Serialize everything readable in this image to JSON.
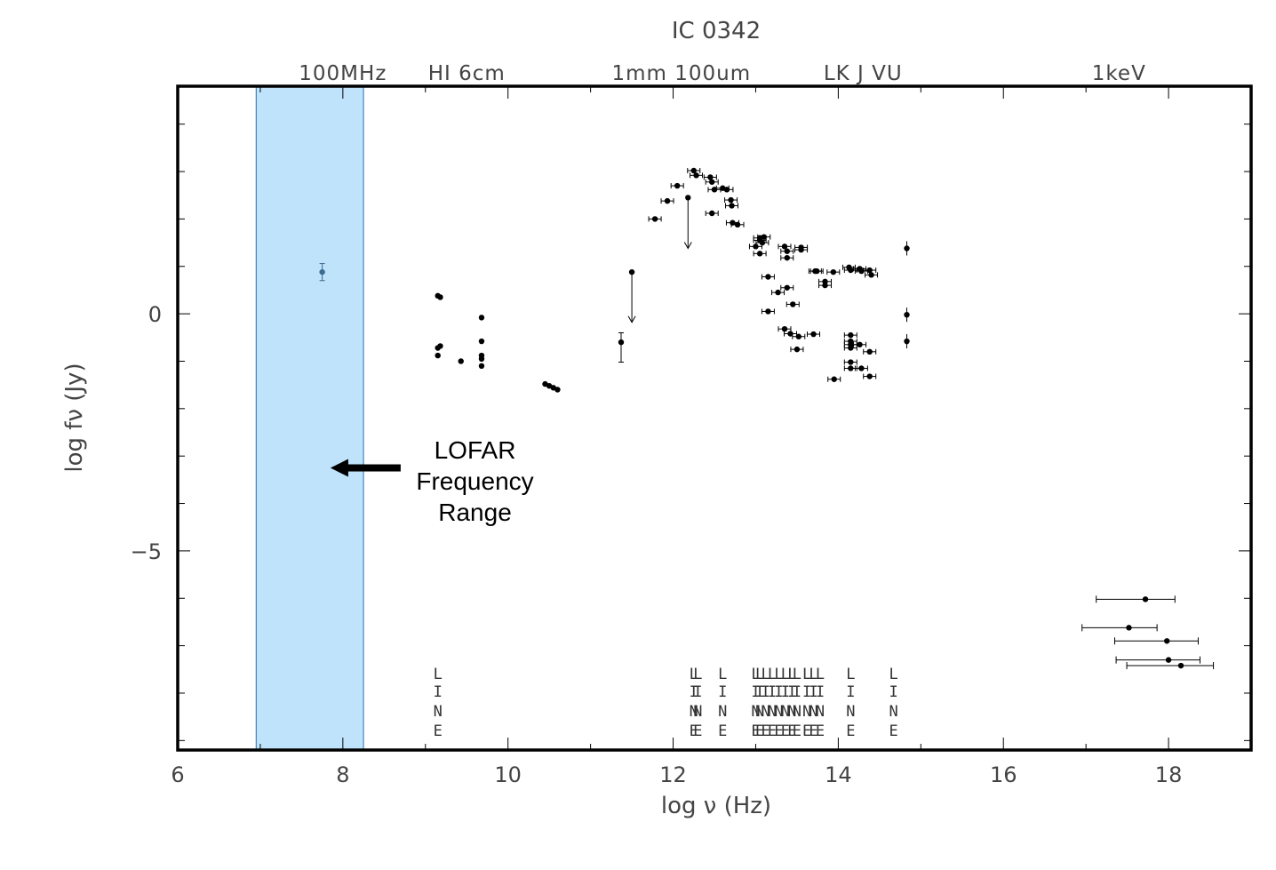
{
  "chart_data": {
    "type": "scatter",
    "title": "IC 0342",
    "xlabel": "log ν (Hz)",
    "ylabel": "log fν (Jy)",
    "xlim": [
      6,
      19
    ],
    "ylim": [
      -9.2,
      4.8
    ],
    "xticks": [
      6,
      8,
      10,
      12,
      14,
      16,
      18
    ],
    "yticks": [
      0,
      -5
    ],
    "top_labels": [
      {
        "text": "100MHz",
        "x": 8.0
      },
      {
        "text": "HI 6cm",
        "x": 9.5
      },
      {
        "text": "1mm 100um",
        "x": 12.1
      },
      {
        "text": "LK J VU",
        "x": 14.3
      },
      {
        "text": "1keV",
        "x": 17.4
      }
    ],
    "highlight_band": {
      "x": [
        6.95,
        8.25
      ],
      "color": "#bfe3fb",
      "edge": "#2a6fa8"
    },
    "annotation": {
      "lines": [
        "LOFAR",
        "Frequency",
        "Range"
      ],
      "arrow_tip": [
        7.85,
        -3.25
      ],
      "arrow_tail": [
        8.7,
        -3.25
      ]
    },
    "lofar_point": {
      "x": 7.75,
      "y": 0.88,
      "err": 0.18,
      "color": "#3d6b8f"
    },
    "series": [
      {
        "points": [
          [
            9.15,
            0.38
          ],
          [
            9.18,
            0.35
          ],
          [
            9.15,
            -0.72
          ],
          [
            9.18,
            -0.68
          ],
          [
            9.15,
            -0.88
          ],
          [
            9.43,
            -1.0
          ],
          [
            9.68,
            -0.08
          ],
          [
            9.68,
            -0.58
          ],
          [
            9.68,
            -0.88
          ],
          [
            9.68,
            -0.95
          ],
          [
            9.68,
            -1.1
          ],
          [
            10.45,
            -1.48
          ],
          [
            10.5,
            -1.52
          ],
          [
            10.55,
            -1.56
          ],
          [
            10.6,
            -1.6
          ],
          [
            11.37,
            -0.6
          ],
          [
            11.78,
            2.0
          ],
          [
            11.93,
            2.38
          ],
          [
            12.05,
            2.7
          ],
          [
            12.25,
            3.02
          ],
          [
            12.28,
            2.92
          ],
          [
            12.45,
            2.88
          ],
          [
            12.47,
            2.78
          ],
          [
            12.5,
            2.62
          ],
          [
            12.6,
            2.65
          ],
          [
            12.65,
            2.62
          ],
          [
            12.7,
            2.4
          ],
          [
            12.71,
            2.28
          ],
          [
            12.72,
            1.92
          ],
          [
            12.78,
            1.88
          ],
          [
            12.47,
            2.12
          ],
          [
            13.0,
            1.42
          ],
          [
            13.05,
            1.6
          ],
          [
            13.05,
            1.55
          ],
          [
            13.1,
            1.62
          ],
          [
            13.08,
            1.5
          ],
          [
            13.05,
            1.27
          ],
          [
            13.15,
            0.78
          ],
          [
            13.15,
            0.05
          ],
          [
            13.27,
            0.45
          ],
          [
            13.35,
            1.42
          ],
          [
            13.38,
            1.32
          ],
          [
            13.38,
            1.18
          ],
          [
            13.38,
            0.55
          ],
          [
            13.45,
            0.2
          ],
          [
            13.55,
            1.4
          ],
          [
            13.55,
            1.35
          ],
          [
            13.35,
            -0.32
          ],
          [
            13.42,
            -0.42
          ],
          [
            13.52,
            -0.48
          ],
          [
            13.5,
            -0.75
          ],
          [
            13.7,
            -0.43
          ],
          [
            13.72,
            0.9
          ],
          [
            13.74,
            0.9
          ],
          [
            13.84,
            0.68
          ],
          [
            13.84,
            0.6
          ],
          [
            13.94,
            0.88
          ],
          [
            13.95,
            -1.38
          ],
          [
            14.13,
            0.98
          ],
          [
            14.15,
            0.92
          ],
          [
            14.15,
            -0.45
          ],
          [
            14.15,
            -0.58
          ],
          [
            14.15,
            -0.65
          ],
          [
            14.15,
            -0.72
          ],
          [
            14.15,
            -1.02
          ],
          [
            14.15,
            -1.15
          ],
          [
            14.26,
            0.95
          ],
          [
            14.28,
            0.9
          ],
          [
            14.26,
            -0.65
          ],
          [
            14.28,
            -1.15
          ],
          [
            14.38,
            0.92
          ],
          [
            14.4,
            0.82
          ],
          [
            14.38,
            -0.8
          ],
          [
            14.38,
            -1.32
          ],
          [
            14.83,
            1.38
          ],
          [
            14.83,
            -0.02
          ],
          [
            14.83,
            -0.58
          ],
          [
            17.72,
            -6.02
          ],
          [
            17.52,
            -6.62
          ],
          [
            17.98,
            -6.9
          ],
          [
            18.0,
            -7.3
          ],
          [
            18.15,
            -7.42
          ]
        ]
      }
    ],
    "upper_limits": [
      {
        "x": 12.18,
        "y_top": 2.45,
        "y_bottom": 1.38
      },
      {
        "x": 11.5,
        "y_top": 0.88,
        "y_bottom": -0.18
      }
    ],
    "line_markers": [
      9.15,
      12.25,
      12.6,
      13.0,
      13.5,
      14.15,
      14.67
    ],
    "line_marker_text": [
      "L",
      "I",
      "N",
      "E"
    ]
  }
}
